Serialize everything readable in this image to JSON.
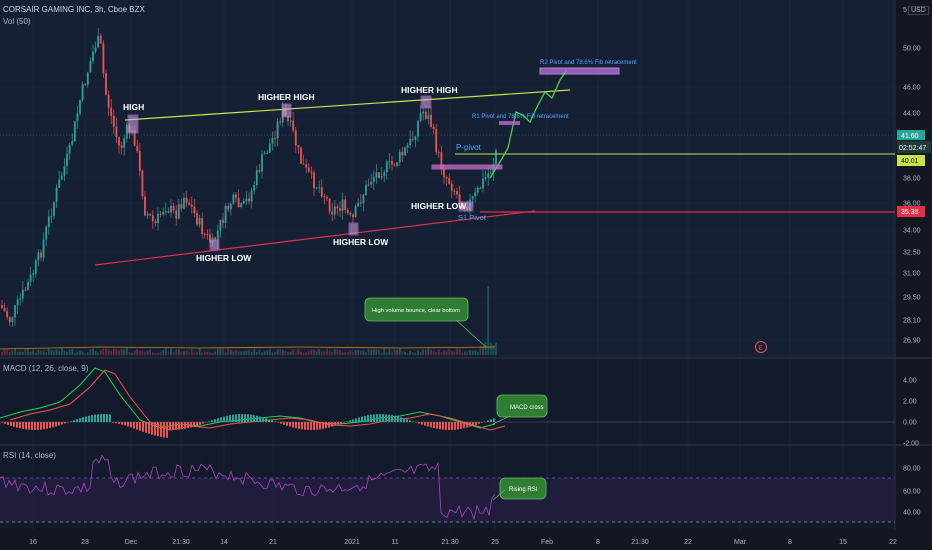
{
  "header": {
    "symbol_line": "CORSAIR GAMING INC, 3h, Cboe BZX",
    "vol_label": "Vol (50)",
    "currency": "USD",
    "top_tick": "5"
  },
  "price_axis": {
    "ticks": [
      "50.00",
      "46.00",
      "44.00",
      "38.00",
      "36.00",
      "34.00",
      "32.50",
      "31.00",
      "29.50",
      "28.10",
      "26.90"
    ],
    "last_price": "41.60",
    "countdown": "02:52:47",
    "pivot_price": "40.01",
    "support_price": "35.35"
  },
  "macd": {
    "label": "MACD (12, 26, close, 9)",
    "ticks": [
      "4.00",
      "2.00",
      "0.00",
      "-2.00"
    ],
    "annotation": "MACD cross"
  },
  "rsi": {
    "label": "RSI (14, close)",
    "ticks": [
      "80.00",
      "60.00",
      "40.00"
    ],
    "annotation": "Rising RSI"
  },
  "time_axis": {
    "ticks": [
      "16",
      "23",
      "Dec",
      "21:30",
      "14",
      "21",
      "2021",
      "11",
      "21:30",
      "25",
      "Feb",
      "8",
      "21:30",
      "22",
      "Mar",
      "8",
      "15",
      "22"
    ]
  },
  "annotations": {
    "high": "HIGH",
    "higher_high_1": "HIGHER HIGH",
    "higher_high_2": "HIGHER HIGH",
    "higher_low_1": "HIGHER LOW",
    "higher_low_2": "HIGHER LOW",
    "higher_low_3": "HIGHER LOW",
    "p_pivot": "P-pivot",
    "s1_pivot": "S1 Pivot",
    "r1_label": "R1 Pivot and 78.6% Fib retracement",
    "r2_label": "R2 Pivot and 78.6% Fib retracement",
    "volume_note": "High volume bounce, clear bottom",
    "earnings_marker": "E"
  },
  "colors": {
    "background": "#131722",
    "up": "#26a69a",
    "down": "#ef5350",
    "trend_upper": "#c7e34a",
    "trend_lower": "#e0304a",
    "projection": "#45d24a",
    "callout": "#2e7d32"
  }
}
